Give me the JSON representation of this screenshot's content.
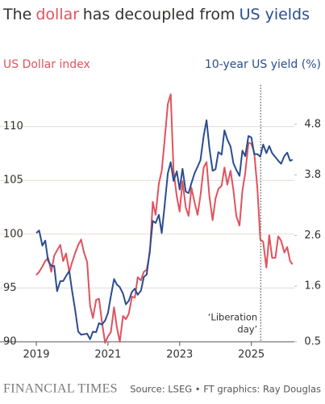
{
  "chart_data": {
    "type": "line",
    "title_parts": [
      {
        "text": "The",
        "color": "#33302e"
      },
      {
        "text": "dollar",
        "color": "#e0525e"
      },
      {
        "text": "has decoupled from",
        "color": "#33302e"
      },
      {
        "text": "US yields",
        "color": "#2a4d8f"
      }
    ],
    "x": [
      2019.0,
      2019.08,
      2019.17,
      2019.25,
      2019.33,
      2019.42,
      2019.5,
      2019.58,
      2019.67,
      2019.75,
      2019.83,
      2019.92,
      2020.0,
      2020.08,
      2020.17,
      2020.25,
      2020.33,
      2020.42,
      2020.5,
      2020.58,
      2020.67,
      2020.75,
      2020.83,
      2020.92,
      2021.0,
      2021.08,
      2021.17,
      2021.25,
      2021.33,
      2021.42,
      2021.5,
      2021.58,
      2021.67,
      2021.75,
      2021.83,
      2021.92,
      2022.0,
      2022.08,
      2022.17,
      2022.25,
      2022.33,
      2022.42,
      2022.5,
      2022.58,
      2022.67,
      2022.75,
      2022.83,
      2022.92,
      2023.0,
      2023.08,
      2023.17,
      2023.25,
      2023.33,
      2023.42,
      2023.5,
      2023.58,
      2023.67,
      2023.75,
      2023.83,
      2023.92,
      2024.0,
      2024.08,
      2024.17,
      2024.25,
      2024.33,
      2024.42,
      2024.5,
      2024.58,
      2024.67,
      2024.75,
      2024.83,
      2024.92,
      2025.0,
      2025.08,
      2025.17,
      2025.25,
      2025.33,
      2025.42,
      2025.5,
      2025.58,
      2025.67,
      2025.75,
      2025.83,
      2025.92,
      2026.0,
      2026.08,
      2026.15
    ],
    "series": [
      {
        "name": "US Dollar index",
        "color": "#e0525e",
        "axis": "y",
        "values": [
          96.2,
          96.5,
          97,
          97.5,
          97.8,
          96.5,
          98,
          98.5,
          99,
          97.5,
          98.2,
          96.5,
          97.4,
          98.2,
          99,
          99.5,
          98.3,
          97.4,
          93.4,
          92.2,
          93.9,
          94,
          91.9,
          89.9,
          90.5,
          90.9,
          93.2,
          91.3,
          90,
          92.4,
          92.1,
          92.6,
          94.2,
          94.1,
          96,
          95.7,
          96.5,
          96.7,
          98.3,
          103,
          101.8,
          104.7,
          105.9,
          108.7,
          112.1,
          113,
          105.9,
          103.5,
          102.1,
          104.9,
          102.5,
          101.7,
          104.3,
          102.9,
          101.8,
          103.6,
          106.2,
          106.7,
          103.5,
          101.3,
          103.3,
          104.2,
          104.5,
          106.2,
          104.6,
          105.9,
          104.1,
          101.7,
          100.8,
          104,
          105.7,
          108.5,
          108.4,
          107.6,
          104.2,
          99.5,
          99.3,
          96.9,
          99.9,
          97.8,
          97.8,
          99.8,
          99.4,
          98.3,
          98.8,
          97.5,
          97.2
        ]
      },
      {
        "name": "10-year US yield (%)",
        "color": "#2a4d8f",
        "axis": "y2",
        "values": [
          2.65,
          2.7,
          2.4,
          2.5,
          2.1,
          2.0,
          2.0,
          1.5,
          1.7,
          1.7,
          1.8,
          1.9,
          1.5,
          1.15,
          0.7,
          0.64,
          0.65,
          0.66,
          0.55,
          0.7,
          0.69,
          0.87,
          0.84,
          0.92,
          1.07,
          1.4,
          1.74,
          1.63,
          1.58,
          1.45,
          1.24,
          1.31,
          1.49,
          1.55,
          1.43,
          1.51,
          1.78,
          1.83,
          2.32,
          2.89,
          2.85,
          3.01,
          2.65,
          3.19,
          3.83,
          4.05,
          3.68,
          3.87,
          3.51,
          3.92,
          3.47,
          3.44,
          3.64,
          3.84,
          3.96,
          4.09,
          4.57,
          4.88,
          4.33,
          3.88,
          3.91,
          4.25,
          4.2,
          4.68,
          4.5,
          4.36,
          4.03,
          3.9,
          3.78,
          4.28,
          4.17,
          4.57,
          4.54,
          4.21,
          4.21,
          4.16,
          4.4,
          4.23,
          4.37,
          4.23,
          4.15,
          4.08,
          4.02,
          4.17,
          4.24,
          4.08,
          4.1
        ]
      }
    ],
    "xlim": [
      2019,
      2026.2
    ],
    "xticks": [
      2019,
      2021,
      2023,
      2025
    ],
    "ylim": [
      90,
      113.5
    ],
    "yticks": [
      90,
      95,
      100,
      105,
      110
    ],
    "y2lim": [
      0.5,
      5.5
    ],
    "y2ticks": [
      0.5,
      1.6,
      2.6,
      3.8,
      4.8
    ],
    "grid": true,
    "annotation": {
      "lines": [
        "‘Liberation",
        "day’"
      ],
      "x": 2025.26
    },
    "brand": "FINANCIAL TIMES",
    "source": "Source: LSEG • FT graphics: Ray Douglas"
  }
}
